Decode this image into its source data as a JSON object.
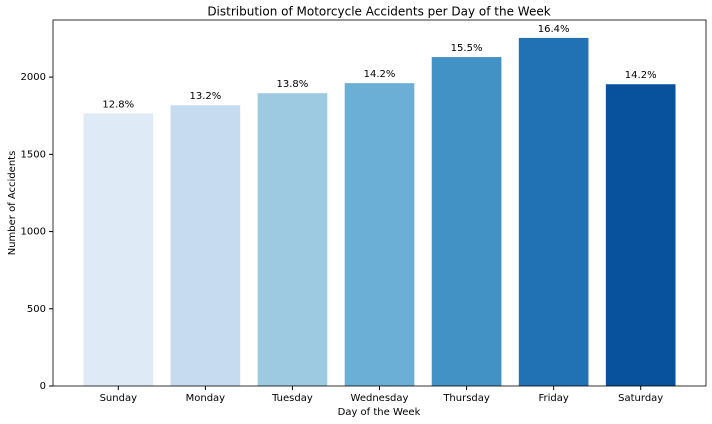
{
  "chart_data": {
    "type": "bar",
    "title": "Distribution of Motorcycle Accidents per Day of the Week",
    "x_label": "Day of the Week",
    "y_label": "Number of Accidents",
    "categories": [
      "Sunday",
      "Monday",
      "Tuesday",
      "Wednesday",
      "Thursday",
      "Friday",
      "Saturday"
    ],
    "values": [
      1765,
      1818,
      1896,
      1961,
      2130,
      2254,
      1954
    ],
    "bar_labels": [
      "12.8%",
      "13.2%",
      "13.8%",
      "14.2%",
      "15.5%",
      "16.4%",
      "14.2%"
    ],
    "colors": [
      "#deebf7",
      "#c6dbef",
      "#9ecae1",
      "#6baed6",
      "#4292c6",
      "#2171b5",
      "#08519c"
    ],
    "ylim": [
      0,
      2370
    ],
    "yticks": [
      0,
      500,
      1000,
      1500,
      2000
    ],
    "grid": false
  }
}
